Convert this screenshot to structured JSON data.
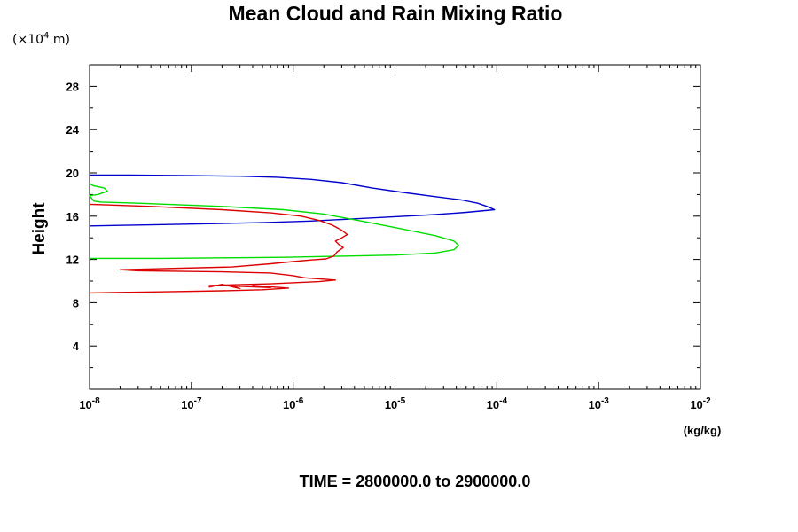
{
  "chart_data": {
    "type": "line",
    "title": "Mean Cloud and Rain Mixing Ratio",
    "y_unit_note": "(×10",
    "y_unit_note_exp": "4",
    "y_unit_note_tail": " m)",
    "ylabel": "Height",
    "xlabel": "(kg/kg)",
    "footer": "TIME = 2800000.0 to 2900000.0",
    "x_scale": "log",
    "xlim": [
      1e-08,
      0.01
    ],
    "ylim": [
      0,
      30
    ],
    "x_ticks": [
      {
        "base": "10",
        "exp": "-8",
        "value": 1e-08
      },
      {
        "base": "10",
        "exp": "-7",
        "value": 1e-07
      },
      {
        "base": "10",
        "exp": "-6",
        "value": 1e-06
      },
      {
        "base": "10",
        "exp": "-5",
        "value": 1e-05
      },
      {
        "base": "10",
        "exp": "-4",
        "value": 0.0001
      },
      {
        "base": "10",
        "exp": "-3",
        "value": 0.001
      },
      {
        "base": "10",
        "exp": "-2",
        "value": 0.01
      }
    ],
    "y_ticks": [
      {
        "label": "4",
        "value": 4
      },
      {
        "label": "8",
        "value": 8
      },
      {
        "label": "12",
        "value": 12
      },
      {
        "label": "16",
        "value": 16
      },
      {
        "label": "20",
        "value": 20
      },
      {
        "label": "24",
        "value": 24
      },
      {
        "label": "28",
        "value": 28
      }
    ],
    "grid": false,
    "legend": "none",
    "series": [
      {
        "color": "#0000cc",
        "points": [
          [
            1e-08,
            19.8
          ],
          [
            2.5e-08,
            19.8
          ],
          [
            1e-07,
            19.75
          ],
          [
            3e-07,
            19.7
          ],
          [
            7e-07,
            19.6
          ],
          [
            1.5e-06,
            19.4
          ],
          [
            3e-06,
            19.1
          ],
          [
            6e-06,
            18.6
          ],
          [
            1.2e-05,
            18.2
          ],
          [
            2.5e-05,
            17.8
          ],
          [
            4.5e-05,
            17.5
          ],
          [
            6.5e-05,
            17.2
          ],
          [
            8e-05,
            16.9
          ],
          [
            9.5e-05,
            16.6
          ],
          [
            5e-05,
            16.35
          ],
          [
            2.5e-05,
            16.15
          ],
          [
            1e-05,
            15.95
          ],
          [
            4e-06,
            15.75
          ],
          [
            1.5e-06,
            15.55
          ],
          [
            5e-07,
            15.4
          ],
          [
            1.5e-07,
            15.3
          ],
          [
            4e-08,
            15.2
          ],
          [
            1e-08,
            15.1
          ]
        ]
      },
      {
        "color": "#00dd00",
        "points": [
          [
            1e-08,
            19.0
          ],
          [
            1.1e-08,
            18.8
          ],
          [
            1.4e-08,
            18.6
          ],
          [
            1.5e-08,
            18.3
          ],
          [
            1.2e-08,
            18.0
          ],
          [
            1e-08,
            17.9
          ],
          [
            1.1e-08,
            17.4
          ],
          [
            1.3e-08,
            17.3
          ],
          [
            3e-08,
            17.2
          ],
          [
            2e-07,
            16.9
          ],
          [
            8e-07,
            16.6
          ],
          [
            2e-06,
            16.2
          ],
          [
            5e-06,
            15.5
          ],
          [
            1.2e-05,
            14.8
          ],
          [
            2.5e-05,
            14.2
          ],
          [
            3.8e-05,
            13.7
          ],
          [
            4.2e-05,
            13.3
          ],
          [
            3.8e-05,
            12.9
          ],
          [
            2.5e-05,
            12.6
          ],
          [
            1e-05,
            12.4
          ],
          [
            3e-06,
            12.3
          ],
          [
            8e-07,
            12.2
          ],
          [
            2e-07,
            12.15
          ],
          [
            5e-08,
            12.1
          ],
          [
            1e-08,
            12.1
          ]
        ]
      },
      {
        "color": "#dd0000",
        "points": [
          [
            1e-08,
            17.1
          ],
          [
            4e-08,
            16.9
          ],
          [
            2e-07,
            16.6
          ],
          [
            6e-07,
            16.3
          ],
          [
            1.2e-06,
            16.0
          ],
          [
            1.8e-06,
            15.6
          ],
          [
            2.4e-06,
            15.2
          ],
          [
            3e-06,
            14.7
          ],
          [
            3.4e-06,
            14.3
          ],
          [
            3e-06,
            14.0
          ],
          [
            2.6e-06,
            13.7
          ],
          [
            2.8e-06,
            13.4
          ],
          [
            3.1e-06,
            13.1
          ],
          [
            2.7e-06,
            12.7
          ],
          [
            2.5e-06,
            12.3
          ],
          [
            2.1e-06,
            12.05
          ],
          [
            1.5e-06,
            11.95
          ],
          [
            1e-06,
            11.8
          ],
          [
            6e-07,
            11.6
          ],
          [
            2.5e-07,
            11.3
          ],
          [
            2e-08,
            11.05
          ],
          [
            3e-08,
            10.95
          ],
          [
            2e-07,
            10.85
          ],
          [
            6e-07,
            10.75
          ],
          [
            1e-06,
            10.5
          ],
          [
            1.3e-06,
            10.3
          ],
          [
            2.6e-06,
            10.1
          ],
          [
            1.8e-06,
            9.95
          ],
          [
            6e-07,
            9.75
          ],
          [
            1.5e-07,
            9.6
          ],
          [
            1.5e-07,
            9.45
          ],
          [
            2e-07,
            9.7
          ],
          [
            3e-07,
            9.3
          ],
          [
            2.5e-07,
            9.55
          ],
          [
            6e-07,
            9.4
          ],
          [
            4e-07,
            9.6
          ],
          [
            9e-07,
            9.35
          ],
          [
            5e-07,
            9.2
          ],
          [
            2e-07,
            9.1
          ],
          [
            5e-08,
            9.0
          ],
          [
            1e-08,
            8.9
          ]
        ]
      }
    ]
  }
}
